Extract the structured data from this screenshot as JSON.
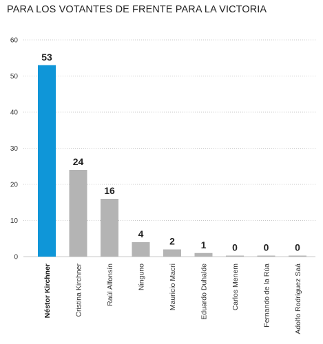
{
  "chart_data": {
    "type": "bar",
    "title": "PARA LOS VOTANTES DE FRENTE PARA LA VICTORIA",
    "xlabel": "",
    "ylabel": "",
    "ylim": [
      0,
      60
    ],
    "yticks": [
      0,
      10,
      20,
      30,
      40,
      50,
      60
    ],
    "grid": true,
    "categories": [
      "Néstor Kirchner",
      "Cristina Kirchner",
      "Raúl Alfonsín",
      "Ninguno",
      "Mauricio Macri",
      "Eduardo Duhalde",
      "Carlos Menem",
      "Fernando de la Rúa",
      "Adolfo Rodríguez Saá"
    ],
    "values": [
      53,
      24,
      16,
      4,
      2,
      1,
      0,
      0,
      0
    ],
    "highlight_index": 0,
    "colors": {
      "highlight": "#0f96d8",
      "default": "#b4b4b4",
      "grid": "#c8c8c8"
    }
  }
}
